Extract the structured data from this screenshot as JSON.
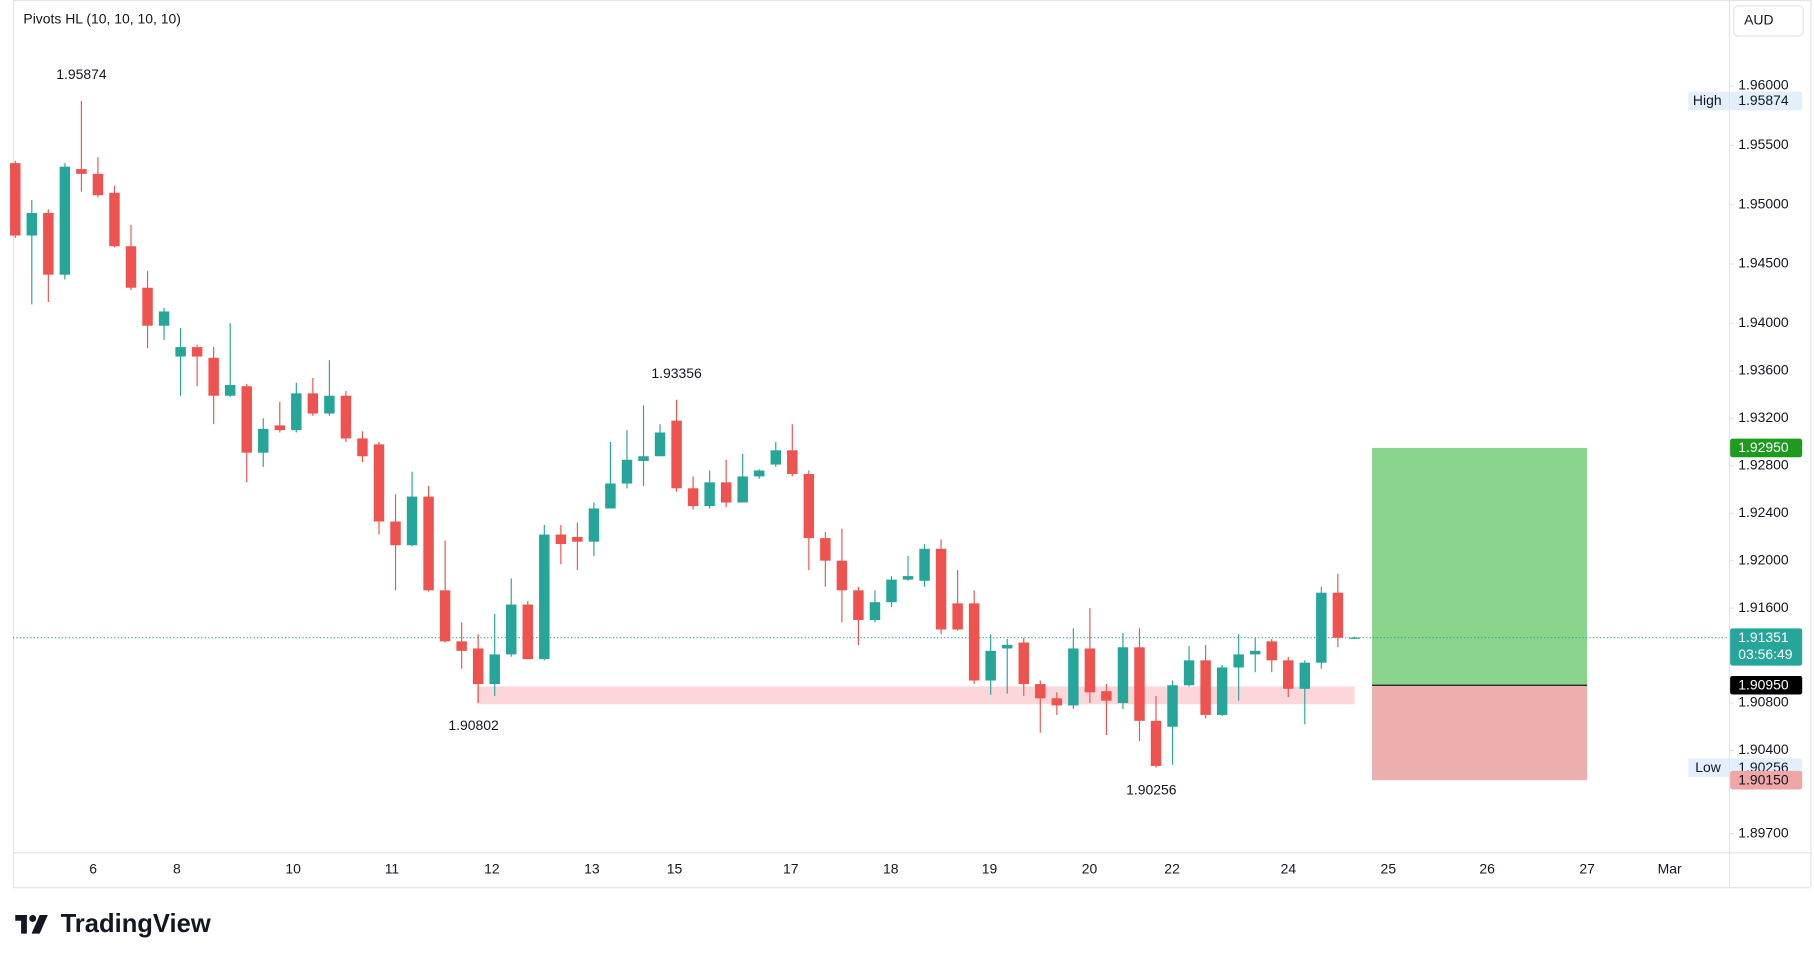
{
  "chart_data": {
    "type": "candlestick",
    "title": "Pivots HL (10, 10, 10, 10)",
    "currency": "AUD",
    "categories": [
      "6",
      "8",
      "10",
      "11",
      "12",
      "13",
      "15",
      "17",
      "18",
      "19",
      "20",
      "22",
      "24",
      "25",
      "26",
      "27",
      "Mar"
    ],
    "open": [
      1.9535,
      1.9474,
      1.9493,
      1.9441,
      1.953,
      1.9526,
      1.951,
      1.9465,
      1.943,
      1.9398,
      1.9372,
      1.938,
      1.9371,
      1.9339,
      1.9347,
      1.9291,
      1.9314,
      1.931,
      1.9341,
      1.9324,
      1.9339,
      1.9303,
      1.9298,
      1.9233,
      1.9213,
      1.9254,
      1.9175,
      1.9132,
      1.9126,
      1.9096,
      1.9121,
      1.9163,
      1.9117,
      1.9222,
      1.922,
      1.9216,
      1.9244,
      1.9265,
      1.9284,
      1.9288,
      1.9318,
      1.9261,
      1.9246,
      1.9266,
      1.9249,
      1.9271,
      1.9281,
      1.9293,
      1.9273,
      1.9219,
      1.92,
      1.9175,
      1.915,
      1.9165,
      1.9184,
      1.9183,
      1.921,
      1.9164,
      1.9164,
      1.9099,
      1.9126,
      1.9131,
      1.9096,
      1.9084,
      1.9078,
      1.9126,
      1.909,
      1.908,
      1.9127,
      1.9065,
      1.906,
      1.9095,
      1.9116,
      1.907,
      1.911,
      1.9121,
      1.9132,
      1.9116,
      1.9092,
      1.9114,
      1.9173,
      1.9135
    ],
    "high": [
      1.9537,
      1.9504,
      1.9496,
      1.9535,
      1.95874,
      1.954,
      1.9516,
      1.9483,
      1.9444,
      1.9413,
      1.9396,
      1.9382,
      1.938,
      1.94,
      1.9349,
      1.932,
      1.9334,
      1.935,
      1.9354,
      1.9369,
      1.9343,
      1.9309,
      1.93,
      1.9256,
      1.9275,
      1.9263,
      1.9217,
      1.9148,
      1.9138,
      1.9155,
      1.9185,
      1.9166,
      1.923,
      1.923,
      1.9232,
      1.9249,
      1.93,
      1.931,
      1.9331,
      1.9315,
      1.93356,
      1.9271,
      1.9276,
      1.9285,
      1.929,
      1.9277,
      1.93,
      1.9315,
      1.9276,
      1.9224,
      1.9227,
      1.9178,
      1.9175,
      1.9187,
      1.9204,
      1.9214,
      1.9218,
      1.9192,
      1.9175,
      1.9138,
      1.9134,
      1.9135,
      1.9099,
      1.9089,
      1.9143,
      1.916,
      1.9096,
      1.9139,
      1.9143,
      1.9086,
      1.9099,
      1.9128,
      1.9129,
      1.9112,
      1.9138,
      1.9135,
      1.9134,
      1.9119,
      1.9116,
      1.9178,
      1.9189,
      1.9136
    ],
    "low": [
      1.9472,
      1.9416,
      1.9418,
      1.9437,
      1.9511,
      1.9506,
      1.9464,
      1.9428,
      1.9379,
      1.9386,
      1.9339,
      1.9347,
      1.9315,
      1.9338,
      1.9266,
      1.9279,
      1.9308,
      1.9308,
      1.9322,
      1.9322,
      1.93,
      1.9283,
      1.9222,
      1.9175,
      1.9212,
      1.9174,
      1.9131,
      1.9109,
      1.90802,
      1.9086,
      1.9119,
      1.9117,
      1.9116,
      1.9197,
      1.9192,
      1.9204,
      1.9244,
      1.9261,
      1.9263,
      1.9288,
      1.9258,
      1.9243,
      1.9244,
      1.9245,
      1.9249,
      1.9269,
      1.9279,
      1.9271,
      1.9192,
      1.9178,
      1.9148,
      1.9129,
      1.9148,
      1.9161,
      1.9183,
      1.9178,
      1.9138,
      1.9141,
      1.9096,
      1.9087,
      1.9088,
      1.9086,
      1.9055,
      1.907,
      1.9075,
      1.908,
      1.9053,
      1.9075,
      1.9048,
      1.90256,
      1.9028,
      1.9094,
      1.9067,
      1.9069,
      1.9082,
      1.9106,
      1.9106,
      1.9085,
      1.9062,
      1.9109,
      1.9127,
      1.9134
    ],
    "close": [
      1.9474,
      1.9493,
      1.9441,
      1.9532,
      1.9526,
      1.9508,
      1.9465,
      1.943,
      1.9398,
      1.941,
      1.938,
      1.9372,
      1.9339,
      1.9348,
      1.9291,
      1.9311,
      1.931,
      1.9341,
      1.9324,
      1.9339,
      1.9303,
      1.9288,
      1.9233,
      1.9213,
      1.9254,
      1.9175,
      1.9132,
      1.9124,
      1.9096,
      1.9121,
      1.9163,
      1.9117,
      1.9222,
      1.9214,
      1.9216,
      1.9244,
      1.9265,
      1.9285,
      1.9288,
      1.9308,
      1.9261,
      1.9246,
      1.9266,
      1.9249,
      1.9271,
      1.9276,
      1.9293,
      1.9273,
      1.9219,
      1.92,
      1.9175,
      1.915,
      1.9165,
      1.9184,
      1.9187,
      1.921,
      1.9142,
      1.9142,
      1.9099,
      1.9124,
      1.9129,
      1.9096,
      1.9084,
      1.9078,
      1.9126,
      1.9089,
      1.9082,
      1.9127,
      1.9065,
      1.9027,
      1.9095,
      1.9116,
      1.907,
      1.911,
      1.9121,
      1.9124,
      1.9116,
      1.9092,
      1.9114,
      1.9173,
      1.9135,
      1.91351
    ],
    "up_color": "#26a69a",
    "down_color": "#ef5350",
    "ylim": [
      1.89543,
      1.96725
    ],
    "yticks": [
      {
        "value": 1.96,
        "label": "1.96000"
      },
      {
        "value": 1.955,
        "label": "1.95500"
      },
      {
        "value": 1.95,
        "label": "1.95000"
      },
      {
        "value": 1.945,
        "label": "1.94500"
      },
      {
        "value": 1.94,
        "label": "1.94000"
      },
      {
        "value": 1.936,
        "label": "1.93600"
      },
      {
        "value": 1.932,
        "label": "1.93200"
      },
      {
        "value": 1.928,
        "label": "1.92800"
      },
      {
        "value": 1.924,
        "label": "1.92400"
      },
      {
        "value": 1.92,
        "label": "1.92000"
      },
      {
        "value": 1.916,
        "label": "1.91600"
      },
      {
        "value": 1.908,
        "label": "1.90800"
      },
      {
        "value": 1.904,
        "label": "1.90400"
      },
      {
        "value": 1.897,
        "label": "1.89700"
      }
    ],
    "high_label": "High",
    "low_label": "Low",
    "countdown": "03:56:49",
    "support_zone": {
      "high": 1.9094,
      "low": 1.9079,
      "color": "#fcd6d9"
    },
    "position": {
      "target": {
        "value": 1.9295,
        "label": "1.92950"
      },
      "entry": {
        "value": 1.9095,
        "label": "1.90950"
      },
      "stop": {
        "value": 1.9015,
        "label": "1.90150"
      }
    },
    "brand": "TradingView"
  }
}
